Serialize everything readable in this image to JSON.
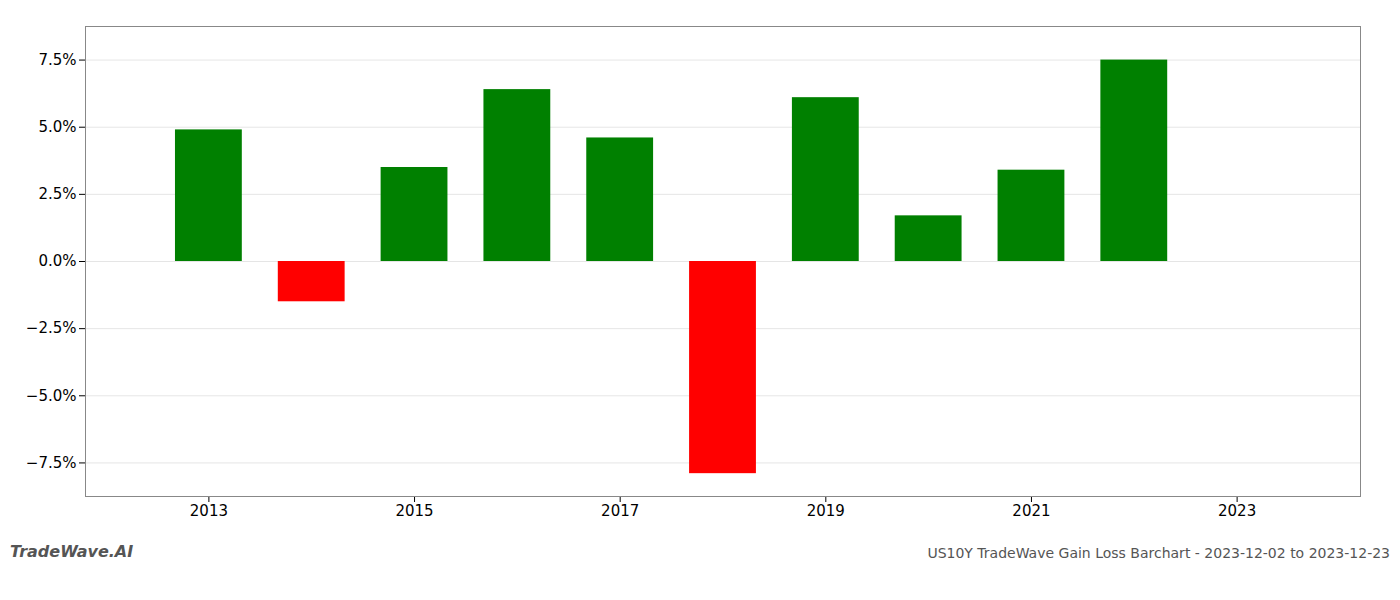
{
  "chart_data": {
    "type": "bar",
    "title": "US10Y TradeWave Gain Loss Barchart - 2023-12-02 to 2023-12-23",
    "annotations": [
      "TradeWave.AI"
    ],
    "x": [
      2013,
      2014,
      2015,
      2016,
      2017,
      2018,
      2019,
      2020,
      2021,
      2022
    ],
    "values": [
      4.9,
      -1.5,
      3.5,
      6.4,
      4.6,
      -7.9,
      6.1,
      1.7,
      3.4,
      7.5
    ],
    "colors": [
      "#008000",
      "#ff0000",
      "#008000",
      "#008000",
      "#008000",
      "#ff0000",
      "#008000",
      "#008000",
      "#008000",
      "#008000"
    ],
    "xlim": [
      2011.8,
      2024.2
    ],
    "xticks": [
      2013,
      2015,
      2017,
      2019,
      2021,
      2023
    ],
    "ylim": [
      -8.75,
      8.75
    ],
    "yticks": [
      {
        "value": -7.5,
        "label": "−7.5%"
      },
      {
        "value": -5.0,
        "label": "−5.0%"
      },
      {
        "value": -2.5,
        "label": "−2.5%"
      },
      {
        "value": 0.0,
        "label": "0.0%"
      },
      {
        "value": 2.5,
        "label": "2.5%"
      },
      {
        "value": 5.0,
        "label": "5.0%"
      },
      {
        "value": 7.5,
        "label": "7.5%"
      }
    ],
    "grid": true
  }
}
